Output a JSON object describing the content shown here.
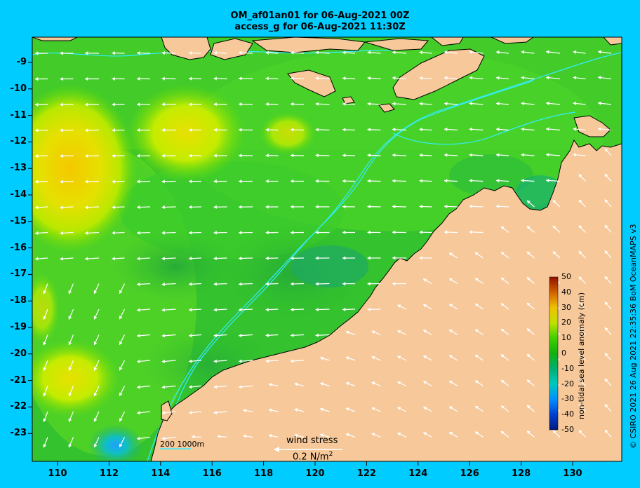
{
  "titles": {
    "line1": "OM_af01an01 for 06-Aug-2021 00Z",
    "line2": "access_g for 06-Aug-2021 11:30Z"
  },
  "axes": {
    "lat_labels": [
      "-9",
      "-10",
      "-11",
      "-12",
      "-13",
      "-14",
      "-15",
      "-16",
      "-17",
      "-18",
      "-19",
      "-20",
      "-21",
      "-22",
      "-23"
    ],
    "lon_labels": [
      "110",
      "112",
      "114",
      "116",
      "118",
      "120",
      "122",
      "124",
      "126",
      "128",
      "130"
    ]
  },
  "colorbar": {
    "title": "non-tidal sea level anomaly (cm)",
    "ticks": [
      "50",
      "40",
      "30",
      "20",
      "10",
      "0",
      "-10",
      "-20",
      "-30",
      "-40",
      "-50"
    ],
    "colors": [
      "#002080",
      "#0050e0",
      "#0090ff",
      "#00c8c8",
      "#00b87a",
      "#00b000",
      "#20d000",
      "#a0e000",
      "#f0e000",
      "#f0a000",
      "#d05000",
      "#a01000"
    ]
  },
  "wind_stress_legend": {
    "label": "wind stress",
    "value": "0.2 N/m",
    "unit_exp": "2"
  },
  "scale_legend": "200  1000m",
  "credit": "© CSIRO 2021  26 Aug 2021 22:35:36 BoM OceanMAPS v3",
  "colors": {
    "land": "#f6c89a",
    "background": "#00ccff",
    "isobath": "#33eeff",
    "arrow": "#ffffff"
  }
}
